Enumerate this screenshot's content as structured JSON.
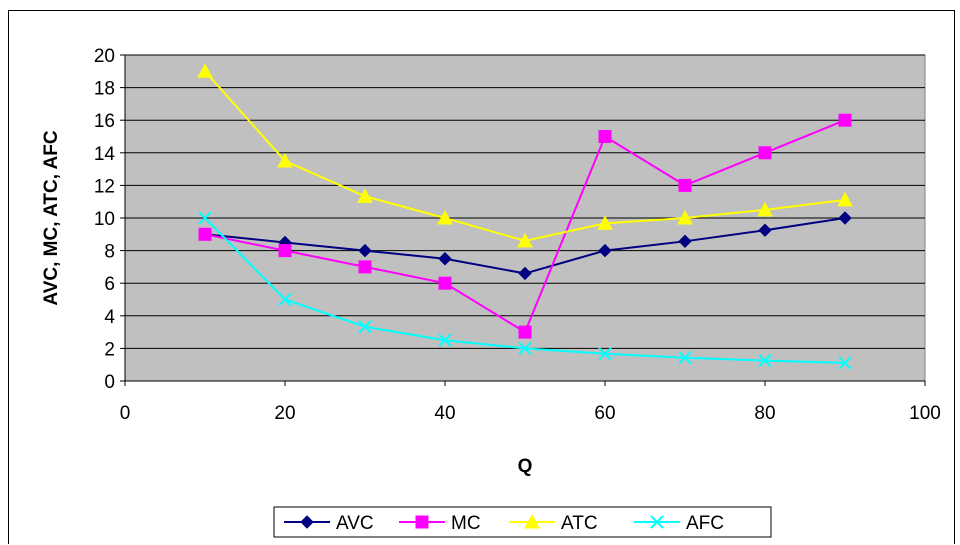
{
  "chart_data": {
    "type": "line",
    "title": "",
    "xlabel": "Q",
    "ylabel": "AVC, MC, ATC, AFC",
    "xlim": [
      0,
      100
    ],
    "ylim": [
      0,
      20
    ],
    "xticks": [
      "0",
      "20",
      "40",
      "60",
      "80",
      "100"
    ],
    "yticks": [
      "0",
      "2",
      "4",
      "6",
      "8",
      "10",
      "12",
      "14",
      "16",
      "18",
      "20"
    ],
    "grid": "horizontal",
    "plot_background": "#c0c0c0",
    "legend_position": "bottom",
    "x": [
      10,
      20,
      30,
      40,
      50,
      60,
      70,
      80,
      90
    ],
    "series": [
      {
        "name": "AVC",
        "color": "#000080",
        "marker": "diamond",
        "values": [
          9,
          8.5,
          8,
          7.5,
          6.6,
          8,
          8.57,
          9.25,
          10
        ]
      },
      {
        "name": "MC",
        "color": "#ff00ff",
        "marker": "square",
        "values": [
          9,
          8,
          7,
          6,
          3,
          15,
          12,
          14,
          16
        ]
      },
      {
        "name": "ATC",
        "color": "#ffff00",
        "marker": "triangle",
        "values": [
          19,
          13.5,
          11.33,
          10,
          8.6,
          9.67,
          10,
          10.5,
          11.11
        ]
      },
      {
        "name": "AFC",
        "color": "#00ffff",
        "marker": "x",
        "values": [
          10,
          5,
          3.33,
          2.5,
          2,
          1.67,
          1.43,
          1.25,
          1.11
        ]
      }
    ]
  }
}
